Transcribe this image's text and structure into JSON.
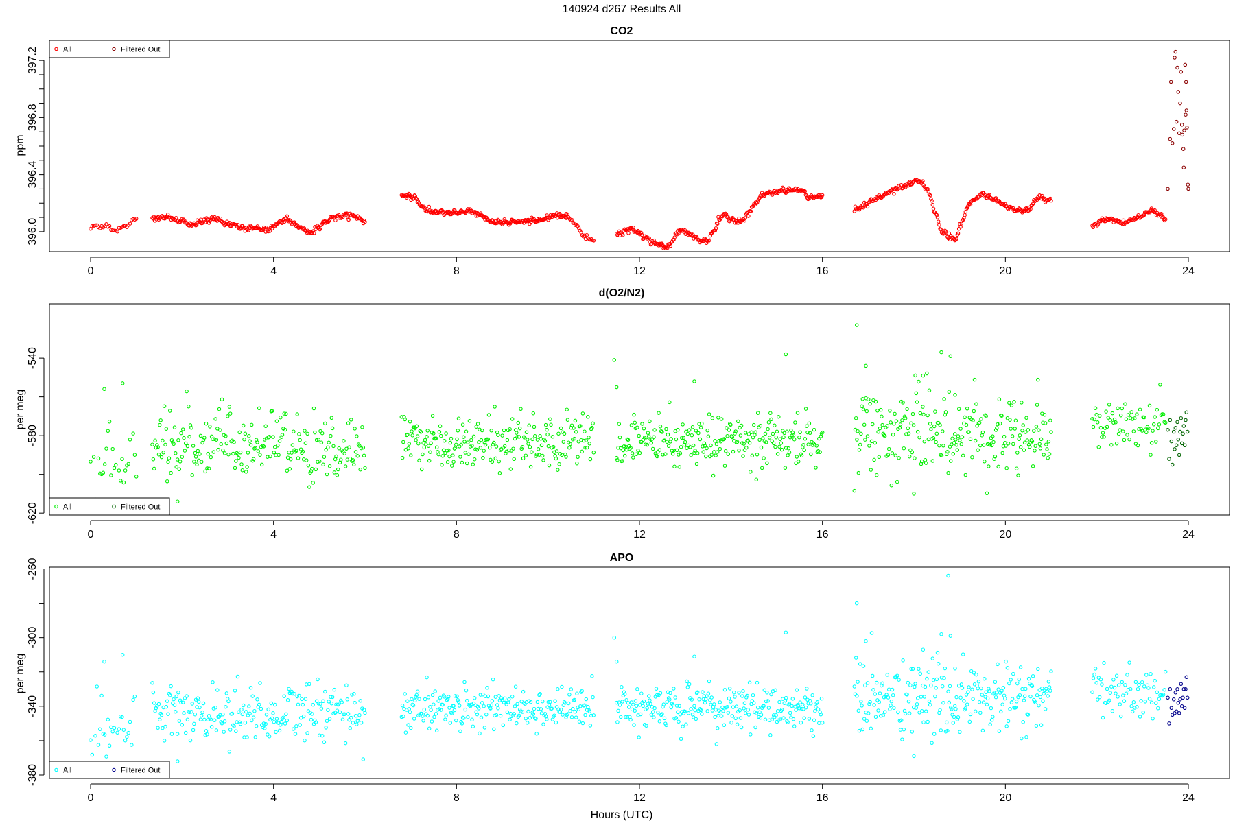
{
  "figure": {
    "title": "140924   d267   Results All",
    "xlabel": "Hours (UTC)"
  },
  "chart_data": [
    {
      "type": "scatter",
      "title": "CO2",
      "ylabel": "ppm",
      "xlim": [
        -0.9,
        24.9
      ],
      "ylim": [
        395.86,
        397.34
      ],
      "xticks": [
        0,
        4,
        8,
        12,
        16,
        20,
        24
      ],
      "yticks": [
        396.0,
        396.4,
        396.8,
        397.2
      ],
      "ytick_labels": [
        "396.0",
        "396.4",
        "396.8",
        "397.2"
      ],
      "minor_ytick_step": 0.1,
      "legend": {
        "position": "top-left",
        "entries": [
          "All",
          "Filtered Out"
        ]
      },
      "all_color": "#ff0000",
      "filtered_color": "#8b0000",
      "noise": 0.008,
      "segments": [
        {
          "x0": 0.0,
          "x1": 1.0,
          "n": 30,
          "knots": [
            [
              0,
              396.03
            ],
            [
              0.3,
              396.04
            ],
            [
              0.5,
              396.01
            ],
            [
              0.7,
              396.03
            ],
            [
              1.0,
              396.09
            ]
          ]
        },
        {
          "x0": 1.35,
          "x1": 6.0,
          "n": 260,
          "knots": [
            [
              1.35,
              396.09
            ],
            [
              1.7,
              396.1
            ],
            [
              2.2,
              396.05
            ],
            [
              2.7,
              396.09
            ],
            [
              3.3,
              396.03
            ],
            [
              3.9,
              396.02
            ],
            [
              4.3,
              396.09
            ],
            [
              4.8,
              395.99
            ],
            [
              5.3,
              396.1
            ],
            [
              5.7,
              396.12
            ],
            [
              6.0,
              396.07
            ]
          ]
        },
        {
          "x0": 6.8,
          "x1": 10.4,
          "n": 230,
          "knots": [
            [
              6.8,
              396.25
            ],
            [
              7.1,
              396.24
            ],
            [
              7.3,
              396.15
            ],
            [
              7.8,
              396.13
            ],
            [
              8.3,
              396.15
            ],
            [
              8.8,
              396.07
            ],
            [
              9.3,
              396.07
            ],
            [
              9.8,
              396.08
            ],
            [
              10.2,
              396.12
            ],
            [
              10.4,
              396.1
            ]
          ]
        },
        {
          "x0": 10.4,
          "x1": 11.0,
          "n": 25,
          "knots": [
            [
              10.4,
              396.12
            ],
            [
              10.6,
              396.05
            ],
            [
              10.8,
              395.96
            ],
            [
              11.0,
              395.94
            ]
          ]
        },
        {
          "x0": 11.5,
          "x1": 16.0,
          "n": 260,
          "knots": [
            [
              11.5,
              395.97
            ],
            [
              11.8,
              396.03
            ],
            [
              12.2,
              395.94
            ],
            [
              12.6,
              395.89
            ],
            [
              12.9,
              396.02
            ],
            [
              13.3,
              395.95
            ],
            [
              13.5,
              395.93
            ],
            [
              13.8,
              396.12
            ],
            [
              14.2,
              396.06
            ],
            [
              14.7,
              396.26
            ],
            [
              15.2,
              396.29
            ],
            [
              15.5,
              396.3
            ],
            [
              15.7,
              396.24
            ],
            [
              16.0,
              396.24
            ]
          ]
        },
        {
          "x0": 16.7,
          "x1": 21.0,
          "n": 240,
          "knots": [
            [
              16.7,
              396.15
            ],
            [
              17.1,
              396.22
            ],
            [
              17.6,
              396.3
            ],
            [
              18.1,
              396.36
            ],
            [
              18.3,
              396.3
            ],
            [
              18.6,
              396.0
            ],
            [
              18.9,
              395.94
            ],
            [
              19.2,
              396.2
            ],
            [
              19.5,
              396.27
            ],
            [
              19.8,
              396.22
            ],
            [
              20.2,
              396.15
            ],
            [
              20.5,
              396.15
            ],
            [
              20.7,
              396.24
            ],
            [
              21.0,
              396.22
            ]
          ]
        },
        {
          "x0": 21.9,
          "x1": 23.5,
          "n": 90,
          "knots": [
            [
              21.9,
              396.04
            ],
            [
              22.2,
              396.09
            ],
            [
              22.6,
              396.06
            ],
            [
              22.9,
              396.1
            ],
            [
              23.2,
              396.15
            ],
            [
              23.5,
              396.09
            ]
          ]
        }
      ],
      "filtered_points": [
        [
          23.55,
          396.3
        ],
        [
          23.6,
          396.65
        ],
        [
          23.62,
          397.05
        ],
        [
          23.65,
          396.62
        ],
        [
          23.68,
          396.72
        ],
        [
          23.7,
          397.22
        ],
        [
          23.72,
          397.26
        ],
        [
          23.74,
          396.77
        ],
        [
          23.76,
          397.15
        ],
        [
          23.78,
          396.98
        ],
        [
          23.8,
          396.69
        ],
        [
          23.82,
          396.9
        ],
        [
          23.84,
          397.12
        ],
        [
          23.86,
          396.75
        ],
        [
          23.87,
          396.68
        ],
        [
          23.89,
          396.58
        ],
        [
          23.9,
          396.45
        ],
        [
          23.91,
          396.71
        ],
        [
          23.93,
          397.17
        ],
        [
          23.94,
          396.82
        ],
        [
          23.95,
          397.05
        ],
        [
          23.96,
          396.85
        ],
        [
          23.97,
          396.73
        ],
        [
          23.99,
          396.33
        ],
        [
          24.0,
          396.3
        ]
      ]
    },
    {
      "type": "scatter",
      "title": "d(O2/N2)",
      "ylabel": "per meg",
      "xlim": [
        -0.9,
        24.9
      ],
      "ylim": [
        -621,
        -512
      ],
      "xticks": [
        0,
        4,
        8,
        12,
        16,
        20,
        24
      ],
      "yticks": [
        -620,
        -580,
        -540
      ],
      "ytick_labels": [
        "-620",
        "-580",
        "-540"
      ],
      "minor_ytick_step": 20,
      "legend": {
        "position": "bottom-left",
        "entries": [
          "All",
          "Filtered Out"
        ]
      },
      "all_color": "#00ee00",
      "filtered_color": "#006400",
      "segments": [
        {
          "x0": 0.0,
          "x1": 1.0,
          "n": 30,
          "mean": -597,
          "sd": 11
        },
        {
          "x0": 1.35,
          "x1": 6.0,
          "n": 230,
          "mean": -586,
          "sd": 8.5
        },
        {
          "x0": 6.8,
          "x1": 11.0,
          "n": 230,
          "mean": -583,
          "sd": 6.5
        },
        {
          "x0": 11.5,
          "x1": 16.0,
          "n": 250,
          "mean": -583,
          "sd": 6.5
        },
        {
          "x0": 16.7,
          "x1": 21.0,
          "n": 240,
          "mean": -578,
          "sd": 11
        },
        {
          "x0": 21.9,
          "x1": 23.5,
          "n": 70,
          "mean": -574,
          "sd": 7
        }
      ],
      "outliers": [
        [
          0.3,
          -556
        ],
        [
          0.7,
          -553
        ],
        [
          1.9,
          -614
        ],
        [
          11.45,
          -541
        ],
        [
          11.5,
          -555
        ],
        [
          13.2,
          -552
        ],
        [
          15.2,
          -538
        ],
        [
          16.75,
          -523
        ],
        [
          16.95,
          -544
        ],
        [
          18.2,
          -549
        ],
        [
          18.6,
          -537
        ],
        [
          18.75,
          -508
        ],
        [
          18.8,
          -539
        ],
        [
          18.9,
          -559
        ],
        [
          18.0,
          -610
        ]
      ],
      "filtered_points": [
        [
          23.55,
          -577
        ],
        [
          23.58,
          -592
        ],
        [
          23.6,
          -572
        ],
        [
          23.63,
          -583
        ],
        [
          23.65,
          -595
        ],
        [
          23.68,
          -578
        ],
        [
          23.7,
          -587
        ],
        [
          23.72,
          -576
        ],
        [
          23.74,
          -585
        ],
        [
          23.76,
          -573
        ],
        [
          23.78,
          -582
        ],
        [
          23.8,
          -590
        ],
        [
          23.82,
          -578
        ],
        [
          23.84,
          -571
        ],
        [
          23.86,
          -584
        ],
        [
          23.88,
          -579
        ],
        [
          23.9,
          -575
        ],
        [
          23.92,
          -585
        ],
        [
          23.94,
          -572
        ],
        [
          23.96,
          -568
        ],
        [
          23.98,
          -578
        ]
      ]
    },
    {
      "type": "scatter",
      "title": "APO",
      "ylabel": "per meg",
      "xlim": [
        -0.9,
        24.9
      ],
      "ylim": [
        -382,
        -259
      ],
      "xticks": [
        0,
        4,
        8,
        12,
        16,
        20,
        24
      ],
      "yticks": [
        -380,
        -340,
        -300,
        -260
      ],
      "ytick_labels": [
        "-380",
        "-340",
        "-300",
        "-260"
      ],
      "minor_ytick_step": 20,
      "legend": {
        "position": "bottom-left",
        "entries": [
          "All",
          "Filtered Out"
        ]
      },
      "all_color": "#00ffff",
      "filtered_color": "#00008b",
      "segments": [
        {
          "x0": 0.0,
          "x1": 1.0,
          "n": 30,
          "mean": -355,
          "sd": 11
        },
        {
          "x0": 1.35,
          "x1": 6.0,
          "n": 230,
          "mean": -344,
          "sd": 9
        },
        {
          "x0": 6.8,
          "x1": 11.0,
          "n": 230,
          "mean": -341,
          "sd": 6.5
        },
        {
          "x0": 11.5,
          "x1": 16.0,
          "n": 250,
          "mean": -341,
          "sd": 6.5
        },
        {
          "x0": 16.7,
          "x1": 21.0,
          "n": 240,
          "mean": -336,
          "sd": 11
        },
        {
          "x0": 21.9,
          "x1": 23.5,
          "n": 70,
          "mean": -332,
          "sd": 7
        }
      ],
      "outliers": [
        [
          0.3,
          -314
        ],
        [
          0.7,
          -310
        ],
        [
          1.9,
          -372
        ],
        [
          11.45,
          -300
        ],
        [
          11.5,
          -314
        ],
        [
          13.2,
          -311
        ],
        [
          15.2,
          -297
        ],
        [
          16.75,
          -280
        ],
        [
          16.95,
          -302
        ],
        [
          18.2,
          -307
        ],
        [
          18.6,
          -298
        ],
        [
          18.75,
          -264
        ],
        [
          18.8,
          -299
        ],
        [
          18.9,
          -318
        ],
        [
          18.0,
          -369
        ]
      ],
      "filtered_points": [
        [
          23.55,
          -335
        ],
        [
          23.58,
          -350
        ],
        [
          23.6,
          -330
        ],
        [
          23.63,
          -341
        ],
        [
          23.65,
          -345
        ],
        [
          23.68,
          -336
        ],
        [
          23.7,
          -344
        ],
        [
          23.72,
          -332
        ],
        [
          23.74,
          -343
        ],
        [
          23.76,
          -330
        ],
        [
          23.78,
          -338
        ],
        [
          23.8,
          -344
        ],
        [
          23.82,
          -336
        ],
        [
          23.84,
          -327
        ],
        [
          23.86,
          -340
        ],
        [
          23.88,
          -335
        ],
        [
          23.9,
          -330
        ],
        [
          23.92,
          -341
        ],
        [
          23.94,
          -330
        ],
        [
          23.96,
          -323
        ],
        [
          23.98,
          -335
        ]
      ]
    }
  ]
}
